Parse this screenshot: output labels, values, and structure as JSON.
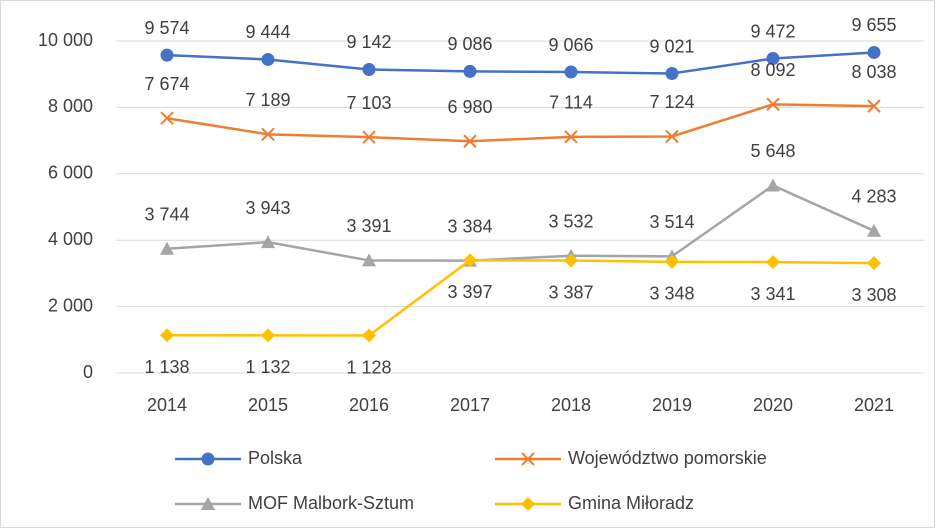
{
  "chart_data": {
    "type": "line",
    "categories": [
      "2014",
      "2015",
      "2016",
      "2017",
      "2018",
      "2019",
      "2020",
      "2021"
    ],
    "series": [
      {
        "name": "Polska",
        "color": "#4472c4",
        "marker": "circle",
        "values": [
          9574,
          9444,
          9142,
          9086,
          9066,
          9021,
          9472,
          9655
        ],
        "value_labels": [
          "9 574",
          "9 444",
          "9 142",
          "9 086",
          "9 066",
          "9 021",
          "9 472",
          "9 655"
        ]
      },
      {
        "name": "Województwo pomorskie",
        "color": "#ed7d31",
        "marker": "x",
        "values": [
          7674,
          7189,
          7103,
          6980,
          7114,
          7124,
          8092,
          8038
        ],
        "value_labels": [
          "7 674",
          "7 189",
          "7 103",
          "6 980",
          "7 114",
          "7 124",
          "8 092",
          "8 038"
        ]
      },
      {
        "name": "MOF Malbork-Sztum",
        "color": "#a5a5a5",
        "marker": "triangle",
        "values": [
          3744,
          3943,
          3391,
          3384,
          3532,
          3514,
          5648,
          4283
        ],
        "value_labels": [
          "3 744",
          "3 943",
          "3 391",
          "3 384",
          "3 532",
          "3 514",
          "5 648",
          "4 283"
        ]
      },
      {
        "name": "Gmina Miłoradz",
        "color": "#ffc000",
        "marker": "diamond",
        "values": [
          1138,
          1132,
          1128,
          3397,
          3387,
          3348,
          3341,
          3308
        ],
        "value_labels": [
          "1 138",
          "1 132",
          "1 128",
          "3 397",
          "3 387",
          "3 348",
          "3 341",
          "3 308"
        ]
      }
    ],
    "ylim": [
      0,
      10000
    ],
    "yticks": [
      0,
      {
        "value": 2000,
        "label": "2 000"
      },
      {
        "value": 4000,
        "label": "4 000"
      },
      {
        "value": 6000,
        "label": "6 000"
      },
      {
        "value": 8000,
        "label": "8 000"
      },
      {
        "value": 10000,
        "label": "10 000"
      }
    ],
    "grid": true,
    "legend": "bottom"
  }
}
